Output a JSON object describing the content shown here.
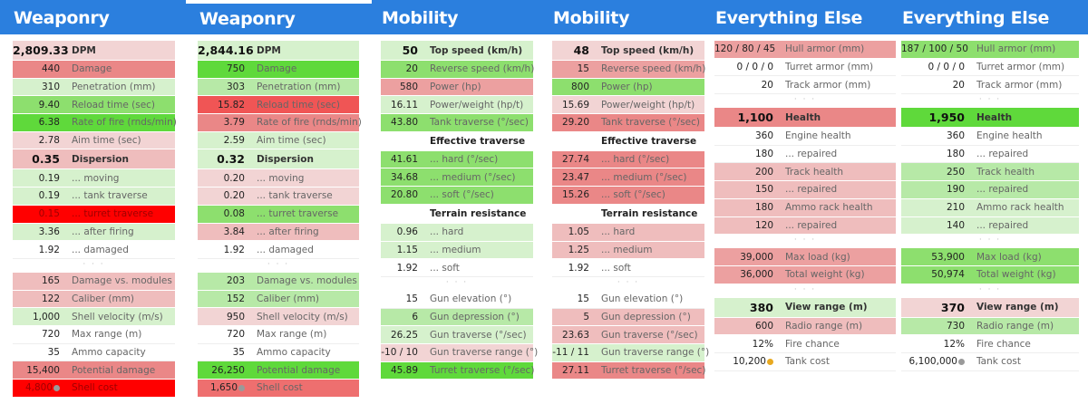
{
  "palette": {
    "G3": "#5fd93b",
    "G2": "#8ddf6e",
    "G1": "#b7e9a7",
    "G0": "#d6f1cd",
    "R0": "#f2d4d4",
    "R1": "#efbdbd",
    "R2": "#eca0a0",
    "R3": "#ea8787",
    "R4": "#ee6f6f",
    "RM": "#f05555",
    "RR": "#ff0000",
    "W": "#ffffff",
    "header": "#2b7fde",
    "coin_gold": "#e8a920",
    "coin_silver": "#9a9a9a"
  },
  "panels": [
    {
      "title": "Weaponry",
      "rows": [
        {
          "v": "2,809.33",
          "l": "DPM",
          "c": "R0",
          "b": true
        },
        {
          "v": "440",
          "l": "Damage",
          "c": "R3"
        },
        {
          "v": "310",
          "l": "Penetration (mm)",
          "c": "G0"
        },
        {
          "v": "9.40",
          "l": "Reload time (sec)",
          "c": "G2"
        },
        {
          "v": "6.38",
          "l": "Rate of fire (rnds/min)",
          "c": "G3"
        },
        {
          "v": "2.78",
          "l": "Aim time (sec)",
          "c": "R0"
        },
        {
          "v": "0.35",
          "l": "Dispersion",
          "c": "R1",
          "b": true
        },
        {
          "v": "0.19",
          "l": "... moving",
          "c": "G0"
        },
        {
          "v": "0.19",
          "l": "... tank traverse",
          "c": "G0"
        },
        {
          "v": "0.15",
          "l": "... turret traverse",
          "c": "RR"
        },
        {
          "v": "3.36",
          "l": "... after firing",
          "c": "G0"
        },
        {
          "v": "1.92",
          "l": "... damaged",
          "c": "W"
        },
        {
          "t": "dots",
          "l": "· · ·"
        },
        {
          "v": "165",
          "l": "Damage vs. modules",
          "c": "R1"
        },
        {
          "v": "122",
          "l": "Caliber (mm)",
          "c": "R1"
        },
        {
          "v": "1,000",
          "l": "Shell velocity (m/s)",
          "c": "G0"
        },
        {
          "v": "720",
          "l": "Max range (m)",
          "c": "W"
        },
        {
          "v": "35",
          "l": "Ammo capacity",
          "c": "W"
        },
        {
          "v": "15,400",
          "l": "Potential damage",
          "c": "R3"
        },
        {
          "v": "4,800",
          "l": "Shell cost",
          "c": "RR",
          "coin": "silver"
        }
      ]
    },
    {
      "title": "Weaponry",
      "rows": [
        {
          "v": "2,844.16",
          "l": "DPM",
          "c": "G0",
          "b": true
        },
        {
          "v": "750",
          "l": "Damage",
          "c": "G3"
        },
        {
          "v": "303",
          "l": "Penetration (mm)",
          "c": "G1"
        },
        {
          "v": "15.82",
          "l": "Reload time (sec)",
          "c": "RM"
        },
        {
          "v": "3.79",
          "l": "Rate of fire (rnds/min)",
          "c": "R3"
        },
        {
          "v": "2.59",
          "l": "Aim time (sec)",
          "c": "G0"
        },
        {
          "v": "0.32",
          "l": "Dispersion",
          "c": "G0",
          "b": true
        },
        {
          "v": "0.20",
          "l": "... moving",
          "c": "R0"
        },
        {
          "v": "0.20",
          "l": "... tank traverse",
          "c": "R0"
        },
        {
          "v": "0.08",
          "l": "... turret traverse",
          "c": "G2"
        },
        {
          "v": "3.84",
          "l": "... after firing",
          "c": "R1"
        },
        {
          "v": "1.92",
          "l": "... damaged",
          "c": "W"
        },
        {
          "t": "dots",
          "l": "· · ·"
        },
        {
          "v": "203",
          "l": "Damage vs. modules",
          "c": "G1"
        },
        {
          "v": "152",
          "l": "Caliber (mm)",
          "c": "G1"
        },
        {
          "v": "950",
          "l": "Shell velocity (m/s)",
          "c": "R0"
        },
        {
          "v": "720",
          "l": "Max range (m)",
          "c": "W"
        },
        {
          "v": "35",
          "l": "Ammo capacity",
          "c": "W"
        },
        {
          "v": "26,250",
          "l": "Potential damage",
          "c": "G3"
        },
        {
          "v": "1,650",
          "l": "Shell cost",
          "c": "R4",
          "coin": "silver"
        }
      ]
    },
    {
      "title": "Mobility",
      "rows": [
        {
          "v": "50",
          "l": "Top speed (km/h)",
          "c": "G0",
          "b": true
        },
        {
          "v": "20",
          "l": "Reverse speed (km/h)",
          "c": "G2"
        },
        {
          "v": "580",
          "l": "Power (hp)",
          "c": "R2"
        },
        {
          "v": "16.11",
          "l": "Power/weight (hp/t)",
          "c": "G0"
        },
        {
          "v": "43.80",
          "l": "Tank traverse (°/sec)",
          "c": "G2"
        },
        {
          "t": "head",
          "l": "Effective traverse"
        },
        {
          "v": "41.61",
          "l": "... hard (°/sec)",
          "c": "G2"
        },
        {
          "v": "34.68",
          "l": "... medium (°/sec)",
          "c": "G2"
        },
        {
          "v": "20.80",
          "l": "... soft (°/sec)",
          "c": "G2"
        },
        {
          "t": "head",
          "l": "Terrain resistance"
        },
        {
          "v": "0.96",
          "l": "... hard",
          "c": "G0"
        },
        {
          "v": "1.15",
          "l": "... medium",
          "c": "G0"
        },
        {
          "v": "1.92",
          "l": "... soft",
          "c": "W"
        },
        {
          "t": "dots",
          "l": "· · ·"
        },
        {
          "v": "15",
          "l": "Gun elevation (°)",
          "c": "W"
        },
        {
          "v": "6",
          "l": "Gun depression (°)",
          "c": "G1"
        },
        {
          "v": "26.25",
          "l": "Gun traverse (°/sec)",
          "c": "G0"
        },
        {
          "v": "-10 / 10",
          "l": "Gun traverse range (°)",
          "c": "R0"
        },
        {
          "v": "45.89",
          "l": "Turret traverse (°/sec)",
          "c": "G3"
        }
      ]
    },
    {
      "title": "Mobility",
      "rows": [
        {
          "v": "48",
          "l": "Top speed (km/h)",
          "c": "R0",
          "b": true
        },
        {
          "v": "15",
          "l": "Reverse speed (km/h)",
          "c": "R2"
        },
        {
          "v": "800",
          "l": "Power (hp)",
          "c": "G2"
        },
        {
          "v": "15.69",
          "l": "Power/weight (hp/t)",
          "c": "R0"
        },
        {
          "v": "29.20",
          "l": "Tank traverse (°/sec)",
          "c": "R3"
        },
        {
          "t": "head",
          "l": "Effective traverse"
        },
        {
          "v": "27.74",
          "l": "... hard (°/sec)",
          "c": "R3"
        },
        {
          "v": "23.47",
          "l": "... medium (°/sec)",
          "c": "R3"
        },
        {
          "v": "15.26",
          "l": "... soft (°/sec)",
          "c": "R3"
        },
        {
          "t": "head",
          "l": "Terrain resistance"
        },
        {
          "v": "1.05",
          "l": "... hard",
          "c": "R1"
        },
        {
          "v": "1.25",
          "l": "... medium",
          "c": "R1"
        },
        {
          "v": "1.92",
          "l": "... soft",
          "c": "W"
        },
        {
          "t": "dots",
          "l": "· · ·"
        },
        {
          "v": "15",
          "l": "Gun elevation (°)",
          "c": "W"
        },
        {
          "v": "5",
          "l": "Gun depression (°)",
          "c": "R1"
        },
        {
          "v": "23.63",
          "l": "Gun traverse (°/sec)",
          "c": "R1"
        },
        {
          "v": "-11 / 11",
          "l": "Gun traverse range (°)",
          "c": "G0"
        },
        {
          "v": "27.11",
          "l": "Turret traverse (°/sec)",
          "c": "R3"
        }
      ]
    },
    {
      "title": "Everything Else",
      "rows": [
        {
          "v": "120 / 80 / 45",
          "l": "Hull armor (mm)",
          "c": "R2"
        },
        {
          "v": "0 / 0 / 0",
          "l": "Turret armor (mm)",
          "c": "W"
        },
        {
          "v": "20",
          "l": "Track armor (mm)",
          "c": "W"
        },
        {
          "t": "dots",
          "l": "· · ·"
        },
        {
          "v": "1,100",
          "l": "Health",
          "c": "R3",
          "b": true
        },
        {
          "v": "360",
          "l": "Engine health",
          "c": "W"
        },
        {
          "v": "180",
          "l": "... repaired",
          "c": "W"
        },
        {
          "v": "200",
          "l": "Track health",
          "c": "R1"
        },
        {
          "v": "150",
          "l": "... repaired",
          "c": "R1"
        },
        {
          "v": "180",
          "l": "Ammo rack health",
          "c": "R1"
        },
        {
          "v": "120",
          "l": "... repaired",
          "c": "R1"
        },
        {
          "t": "dots",
          "l": "· · ·"
        },
        {
          "v": "39,000",
          "l": "Max load (kg)",
          "c": "R2"
        },
        {
          "v": "36,000",
          "l": "Total weight (kg)",
          "c": "R2"
        },
        {
          "t": "dots",
          "l": "· · ·"
        },
        {
          "v": "380",
          "l": "View range (m)",
          "c": "G0",
          "b": true
        },
        {
          "v": "600",
          "l": "Radio range (m)",
          "c": "R1"
        },
        {
          "v": "12%",
          "l": "Fire chance",
          "c": "W"
        },
        {
          "v": "10,200",
          "l": "Tank cost",
          "c": "W",
          "coin": "gold"
        }
      ]
    },
    {
      "title": "Everything Else",
      "rows": [
        {
          "v": "187 / 100 / 50",
          "l": "Hull armor (mm)",
          "c": "G2"
        },
        {
          "v": "0 / 0 / 0",
          "l": "Turret armor (mm)",
          "c": "W"
        },
        {
          "v": "20",
          "l": "Track armor (mm)",
          "c": "W"
        },
        {
          "t": "dots",
          "l": "· · ·"
        },
        {
          "v": "1,950",
          "l": "Health",
          "c": "G3",
          "b": true
        },
        {
          "v": "360",
          "l": "Engine health",
          "c": "W"
        },
        {
          "v": "180",
          "l": "... repaired",
          "c": "W"
        },
        {
          "v": "250",
          "l": "Track health",
          "c": "G1"
        },
        {
          "v": "190",
          "l": "... repaired",
          "c": "G1"
        },
        {
          "v": "210",
          "l": "Ammo rack health",
          "c": "G0"
        },
        {
          "v": "140",
          "l": "... repaired",
          "c": "G0"
        },
        {
          "t": "dots",
          "l": "· · ·"
        },
        {
          "v": "53,900",
          "l": "Max load (kg)",
          "c": "G2"
        },
        {
          "v": "50,974",
          "l": "Total weight (kg)",
          "c": "G2"
        },
        {
          "t": "dots",
          "l": "· · ·"
        },
        {
          "v": "370",
          "l": "View range (m)",
          "c": "R0",
          "b": true
        },
        {
          "v": "730",
          "l": "Radio range (m)",
          "c": "G1"
        },
        {
          "v": "12%",
          "l": "Fire chance",
          "c": "W"
        },
        {
          "v": "6,100,000",
          "l": "Tank cost",
          "c": "W",
          "coin": "silver"
        }
      ]
    }
  ]
}
